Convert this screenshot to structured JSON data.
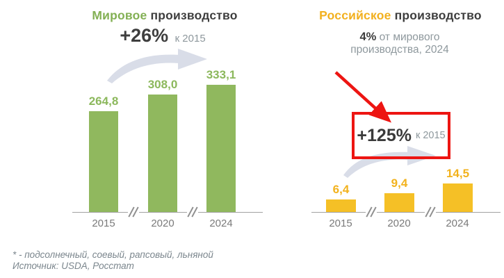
{
  "chart_data": [
    {
      "type": "bar",
      "title": "Мировое производство",
      "title_highlight": "Мировое",
      "title_rest": "производство",
      "title_color": "#83b054",
      "categories": [
        "2015",
        "2020",
        "2024"
      ],
      "values": [
        264.8,
        308.0,
        333.1
      ],
      "value_labels": [
        "264,8",
        "308,0",
        "333,1"
      ],
      "bar_color": "#90b85e",
      "label_color": "#8cb85c",
      "annotation": {
        "delta": "+26%",
        "reference": "к 2015"
      },
      "axis_breaks": true,
      "ylim": [
        0,
        333.1
      ],
      "legend": "none",
      "grid": "off"
    },
    {
      "type": "bar",
      "title": "Российское производство",
      "title_highlight": "Российское",
      "title_rest": "производство",
      "title_color": "#f2b01e",
      "subtitle_pct": "4%",
      "subtitle_line1": "от мирового",
      "subtitle_line2": "производства, 2024",
      "categories": [
        "2015",
        "2020",
        "2024"
      ],
      "values": [
        6.4,
        9.4,
        14.5
      ],
      "value_labels": [
        "6,4",
        "9,4",
        "14,5"
      ],
      "bar_color": "#f5c026",
      "label_color": "#f2b21d",
      "annotation": {
        "delta": "+125%",
        "reference": "к 2015",
        "boxed": true,
        "box_color": "#ed1512"
      },
      "axis_breaks": true,
      "ylim": [
        0,
        14.5
      ],
      "legend": "none",
      "grid": "off"
    }
  ],
  "footer": {
    "note": "* - подсолнечный, соевый, рапсовый, льняной",
    "source": "Источник: USDA, Росстат"
  },
  "colors": {
    "green": "#90b85e",
    "yellow": "#f5c026",
    "dark_text": "#3e3e3e",
    "gray_text": "#8e989d",
    "red": "#ed1512",
    "swoosh": "#d9dde8",
    "axis": "#a0a0a0"
  }
}
